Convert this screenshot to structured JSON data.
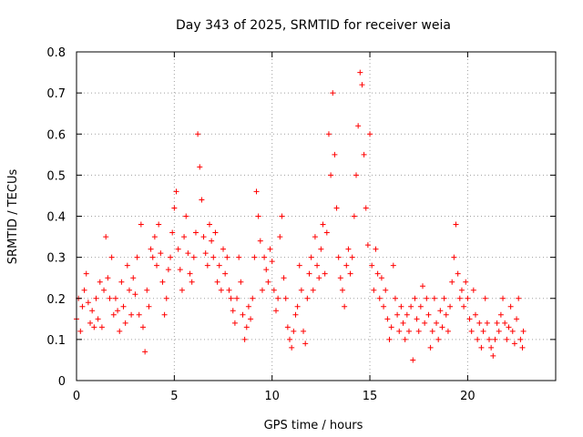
{
  "chart_data": {
    "type": "scatter",
    "title": "Day 343 of 2025, SRMTID for receiver weia",
    "xlabel": "GPS time / hours",
    "ylabel": "SRMTID / TECUs",
    "xlim": [
      0,
      24.5
    ],
    "ylim": [
      0,
      0.8
    ],
    "xticks": [
      0,
      5,
      10,
      15,
      20
    ],
    "xtick_labels": [
      "0",
      "5",
      "10",
      "15",
      "20"
    ],
    "yticks": [
      0,
      0.1,
      0.2,
      0.3,
      0.4,
      0.5,
      0.6,
      0.7,
      0.8
    ],
    "ytick_labels": [
      "0",
      "0.1",
      "0.2",
      "0.3",
      "0.4",
      "0.5",
      "0.6",
      "0.7",
      "0.8"
    ],
    "grid": true,
    "marker": "+",
    "color": "#ff0000",
    "series": [
      {
        "name": "SRMTID",
        "points": [
          [
            0.0,
            0.15
          ],
          [
            0.1,
            0.2
          ],
          [
            0.2,
            0.12
          ],
          [
            0.3,
            0.18
          ],
          [
            0.4,
            0.22
          ],
          [
            0.5,
            0.26
          ],
          [
            0.6,
            0.19
          ],
          [
            0.7,
            0.14
          ],
          [
            0.8,
            0.17
          ],
          [
            0.9,
            0.13
          ],
          [
            1.0,
            0.2
          ],
          [
            1.1,
            0.15
          ],
          [
            1.2,
            0.24
          ],
          [
            1.3,
            0.13
          ],
          [
            1.4,
            0.22
          ],
          [
            1.5,
            0.35
          ],
          [
            1.6,
            0.25
          ],
          [
            1.7,
            0.2
          ],
          [
            1.8,
            0.3
          ],
          [
            1.9,
            0.16
          ],
          [
            2.0,
            0.2
          ],
          [
            2.1,
            0.17
          ],
          [
            2.2,
            0.12
          ],
          [
            2.3,
            0.24
          ],
          [
            2.4,
            0.18
          ],
          [
            2.5,
            0.14
          ],
          [
            2.6,
            0.28
          ],
          [
            2.7,
            0.22
          ],
          [
            2.8,
            0.16
          ],
          [
            2.9,
            0.25
          ],
          [
            3.0,
            0.21
          ],
          [
            3.1,
            0.3
          ],
          [
            3.2,
            0.16
          ],
          [
            3.3,
            0.38
          ],
          [
            3.4,
            0.13
          ],
          [
            3.5,
            0.07
          ],
          [
            3.6,
            0.22
          ],
          [
            3.7,
            0.18
          ],
          [
            3.8,
            0.32
          ],
          [
            3.9,
            0.3
          ],
          [
            4.0,
            0.35
          ],
          [
            4.1,
            0.28
          ],
          [
            4.2,
            0.38
          ],
          [
            4.3,
            0.31
          ],
          [
            4.4,
            0.24
          ],
          [
            4.5,
            0.16
          ],
          [
            4.6,
            0.2
          ],
          [
            4.7,
            0.27
          ],
          [
            4.8,
            0.3
          ],
          [
            4.9,
            0.36
          ],
          [
            5.0,
            0.42
          ],
          [
            5.1,
            0.46
          ],
          [
            5.2,
            0.32
          ],
          [
            5.3,
            0.27
          ],
          [
            5.4,
            0.22
          ],
          [
            5.5,
            0.35
          ],
          [
            5.6,
            0.4
          ],
          [
            5.7,
            0.31
          ],
          [
            5.8,
            0.26
          ],
          [
            5.9,
            0.24
          ],
          [
            6.0,
            0.3
          ],
          [
            6.1,
            0.36
          ],
          [
            6.2,
            0.6
          ],
          [
            6.3,
            0.52
          ],
          [
            6.4,
            0.44
          ],
          [
            6.5,
            0.35
          ],
          [
            6.6,
            0.31
          ],
          [
            6.7,
            0.28
          ],
          [
            6.8,
            0.38
          ],
          [
            6.9,
            0.34
          ],
          [
            7.0,
            0.3
          ],
          [
            7.1,
            0.36
          ],
          [
            7.2,
            0.24
          ],
          [
            7.3,
            0.28
          ],
          [
            7.4,
            0.22
          ],
          [
            7.5,
            0.32
          ],
          [
            7.6,
            0.26
          ],
          [
            7.7,
            0.3
          ],
          [
            7.8,
            0.22
          ],
          [
            7.9,
            0.2
          ],
          [
            8.0,
            0.17
          ],
          [
            8.1,
            0.14
          ],
          [
            8.2,
            0.2
          ],
          [
            8.3,
            0.3
          ],
          [
            8.4,
            0.24
          ],
          [
            8.5,
            0.16
          ],
          [
            8.6,
            0.1
          ],
          [
            8.7,
            0.13
          ],
          [
            8.8,
            0.18
          ],
          [
            8.9,
            0.15
          ],
          [
            9.0,
            0.2
          ],
          [
            9.1,
            0.3
          ],
          [
            9.2,
            0.46
          ],
          [
            9.3,
            0.4
          ],
          [
            9.4,
            0.34
          ],
          [
            9.5,
            0.22
          ],
          [
            9.6,
            0.3
          ],
          [
            9.7,
            0.27
          ],
          [
            9.8,
            0.24
          ],
          [
            9.9,
            0.32
          ],
          [
            10.0,
            0.29
          ],
          [
            10.1,
            0.22
          ],
          [
            10.2,
            0.17
          ],
          [
            10.3,
            0.2
          ],
          [
            10.4,
            0.35
          ],
          [
            10.5,
            0.4
          ],
          [
            10.6,
            0.25
          ],
          [
            10.7,
            0.2
          ],
          [
            10.8,
            0.13
          ],
          [
            10.9,
            0.1
          ],
          [
            11.0,
            0.08
          ],
          [
            11.1,
            0.12
          ],
          [
            11.2,
            0.16
          ],
          [
            11.3,
            0.18
          ],
          [
            11.4,
            0.28
          ],
          [
            11.5,
            0.22
          ],
          [
            11.6,
            0.12
          ],
          [
            11.7,
            0.09
          ],
          [
            11.8,
            0.2
          ],
          [
            11.9,
            0.26
          ],
          [
            12.0,
            0.3
          ],
          [
            12.1,
            0.22
          ],
          [
            12.2,
            0.35
          ],
          [
            12.3,
            0.28
          ],
          [
            12.4,
            0.25
          ],
          [
            12.5,
            0.32
          ],
          [
            12.6,
            0.38
          ],
          [
            12.7,
            0.26
          ],
          [
            12.8,
            0.36
          ],
          [
            12.9,
            0.6
          ],
          [
            13.0,
            0.5
          ],
          [
            13.1,
            0.7
          ],
          [
            13.2,
            0.55
          ],
          [
            13.3,
            0.42
          ],
          [
            13.4,
            0.3
          ],
          [
            13.5,
            0.25
          ],
          [
            13.6,
            0.22
          ],
          [
            13.7,
            0.18
          ],
          [
            13.8,
            0.28
          ],
          [
            13.9,
            0.32
          ],
          [
            14.0,
            0.26
          ],
          [
            14.1,
            0.3
          ],
          [
            14.2,
            0.4
          ],
          [
            14.3,
            0.5
          ],
          [
            14.4,
            0.62
          ],
          [
            14.5,
            0.75
          ],
          [
            14.6,
            0.72
          ],
          [
            14.7,
            0.55
          ],
          [
            14.8,
            0.42
          ],
          [
            14.9,
            0.33
          ],
          [
            15.0,
            0.6
          ],
          [
            15.1,
            0.28
          ],
          [
            15.2,
            0.22
          ],
          [
            15.3,
            0.32
          ],
          [
            15.4,
            0.26
          ],
          [
            15.5,
            0.2
          ],
          [
            15.6,
            0.25
          ],
          [
            15.7,
            0.18
          ],
          [
            15.8,
            0.22
          ],
          [
            15.9,
            0.15
          ],
          [
            16.0,
            0.1
          ],
          [
            16.1,
            0.13
          ],
          [
            16.2,
            0.28
          ],
          [
            16.3,
            0.2
          ],
          [
            16.4,
            0.16
          ],
          [
            16.5,
            0.12
          ],
          [
            16.6,
            0.18
          ],
          [
            16.7,
            0.14
          ],
          [
            16.8,
            0.1
          ],
          [
            16.9,
            0.16
          ],
          [
            17.0,
            0.12
          ],
          [
            17.1,
            0.18
          ],
          [
            17.2,
            0.05
          ],
          [
            17.3,
            0.2
          ],
          [
            17.4,
            0.15
          ],
          [
            17.5,
            0.12
          ],
          [
            17.6,
            0.18
          ],
          [
            17.7,
            0.23
          ],
          [
            17.8,
            0.14
          ],
          [
            17.9,
            0.2
          ],
          [
            18.0,
            0.16
          ],
          [
            18.1,
            0.08
          ],
          [
            18.2,
            0.12
          ],
          [
            18.3,
            0.2
          ],
          [
            18.4,
            0.14
          ],
          [
            18.5,
            0.1
          ],
          [
            18.6,
            0.17
          ],
          [
            18.7,
            0.13
          ],
          [
            18.8,
            0.2
          ],
          [
            18.9,
            0.16
          ],
          [
            19.0,
            0.12
          ],
          [
            19.1,
            0.18
          ],
          [
            19.2,
            0.24
          ],
          [
            19.3,
            0.3
          ],
          [
            19.4,
            0.38
          ],
          [
            19.5,
            0.26
          ],
          [
            19.6,
            0.2
          ],
          [
            19.7,
            0.22
          ],
          [
            19.8,
            0.18
          ],
          [
            19.9,
            0.24
          ],
          [
            20.0,
            0.2
          ],
          [
            20.1,
            0.15
          ],
          [
            20.2,
            0.12
          ],
          [
            20.3,
            0.22
          ],
          [
            20.4,
            0.16
          ],
          [
            20.5,
            0.1
          ],
          [
            20.6,
            0.14
          ],
          [
            20.7,
            0.08
          ],
          [
            20.8,
            0.12
          ],
          [
            20.9,
            0.2
          ],
          [
            21.0,
            0.14
          ],
          [
            21.1,
            0.1
          ],
          [
            21.2,
            0.08
          ],
          [
            21.3,
            0.06
          ],
          [
            21.4,
            0.1
          ],
          [
            21.5,
            0.14
          ],
          [
            21.6,
            0.12
          ],
          [
            21.7,
            0.16
          ],
          [
            21.8,
            0.2
          ],
          [
            21.9,
            0.14
          ],
          [
            22.0,
            0.1
          ],
          [
            22.1,
            0.13
          ],
          [
            22.2,
            0.18
          ],
          [
            22.3,
            0.12
          ],
          [
            22.4,
            0.09
          ],
          [
            22.5,
            0.15
          ],
          [
            22.6,
            0.2
          ],
          [
            22.7,
            0.1
          ],
          [
            22.8,
            0.08
          ],
          [
            22.85,
            0.12
          ]
        ]
      }
    ]
  }
}
